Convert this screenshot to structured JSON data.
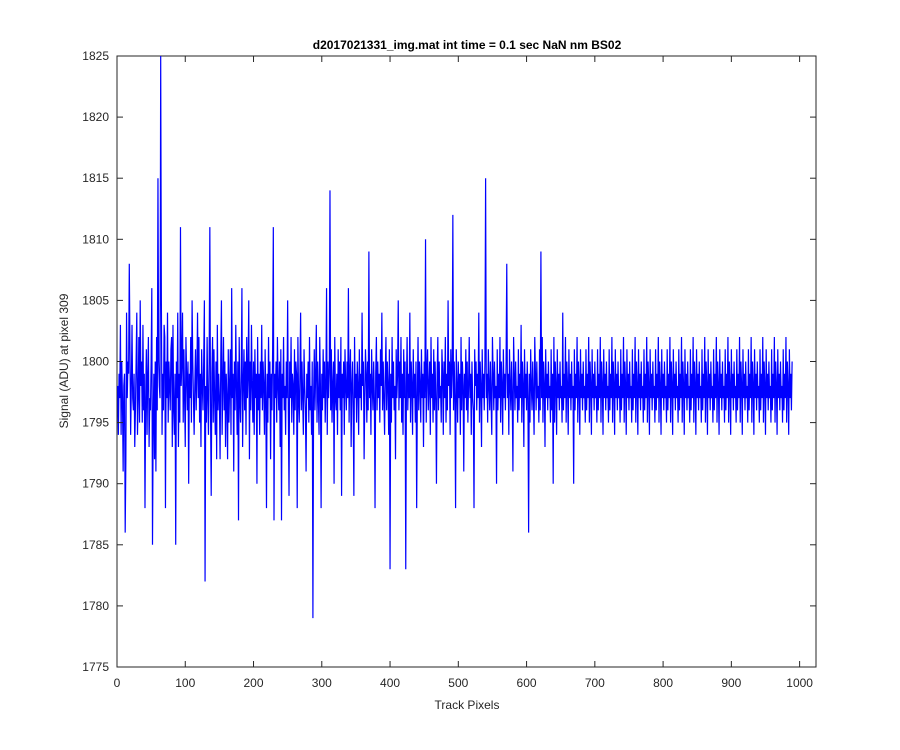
{
  "chart_data": {
    "type": "line",
    "title": "d2017021331_img.mat int time = 0.1 sec  NaN nm BS02",
    "xlabel": "Track Pixels",
    "ylabel": "Signal (ADU) at pixel 309",
    "xlim": [
      0,
      1024
    ],
    "ylim": [
      1775,
      1825
    ],
    "xticks": [
      "0",
      "100",
      "200",
      "300",
      "400",
      "500",
      "600",
      "700",
      "800",
      "900",
      "1000"
    ],
    "yticks": [
      "1775",
      "1780",
      "1785",
      "1790",
      "1795",
      "1800",
      "1805",
      "1810",
      "1815",
      "1820",
      "1825"
    ],
    "grid": false,
    "legend": "none",
    "series": [
      {
        "color": "#0000ff",
        "x_start": 1,
        "x_step": 1,
        "values": [
          1798,
          1794,
          1799,
          1797,
          1803,
          1794,
          1800,
          1797,
          1791,
          1798,
          1799,
          1786,
          1792,
          1804,
          1797,
          1800,
          1799,
          1808,
          1801,
          1794,
          1798,
          1803,
          1797,
          1796,
          1799,
          1793,
          1796,
          1800,
          1804,
          1794,
          1797,
          1802,
          1795,
          1805,
          1798,
          1800,
          1795,
          1803,
          1796,
          1799,
          1788,
          1797,
          1801,
          1794,
          1799,
          1802,
          1793,
          1797,
          1796,
          1800,
          1806,
          1785,
          1795,
          1799,
          1792,
          1800,
          1791,
          1802,
          1796,
          1815,
          1800,
          1798,
          1797,
          1825,
          1805,
          1794,
          1799,
          1796,
          1803,
          1802,
          1788,
          1800,
          1797,
          1804,
          1795,
          1800,
          1798,
          1796,
          1801,
          1802,
          1793,
          1803,
          1796,
          1794,
          1799,
          1785,
          1800,
          1797,
          1804,
          1793,
          1799,
          1795,
          1811,
          1798,
          1800,
          1804,
          1795,
          1801,
          1797,
          1793,
          1802,
          1799,
          1796,
          1800,
          1790,
          1799,
          1797,
          1802,
          1795,
          1805,
          1800,
          1797,
          1794,
          1798,
          1801,
          1796,
          1799,
          1804,
          1797,
          1802,
          1795,
          1799,
          1793,
          1801,
          1798,
          1796,
          1800,
          1805,
          1782,
          1798,
          1795,
          1802,
          1797,
          1794,
          1800,
          1811,
          1796,
          1789,
          1799,
          1802,
          1795,
          1801,
          1797,
          1794,
          1800,
          1792,
          1803,
          1796,
          1799,
          1797,
          1792,
          1800,
          1805,
          1794,
          1798,
          1802,
          1796,
          1800,
          1793,
          1799,
          1797,
          1792,
          1801,
          1795,
          1798,
          1801,
          1794,
          1806,
          1797,
          1799,
          1791,
          1800,
          1796,
          1803,
          1798,
          1794,
          1800,
          1787,
          1802,
          1797,
          1795,
          1799,
          1806,
          1793,
          1798,
          1801,
          1796,
          1800,
          1794,
          1802,
          1797,
          1799,
          1805,
          1792,
          1800,
          1796,
          1803,
          1798,
          1795,
          1800,
          1794,
          1801,
          1797,
          1799,
          1790,
          1802,
          1796,
          1799,
          1794,
          1800,
          1797,
          1803,
          1796,
          1800,
          1798,
          1794,
          1801,
          1797,
          1788,
          1799,
          1795,
          1802,
          1797,
          1800,
          1792,
          1799,
          1796,
          1801,
          1811,
          1787,
          1799,
          1797,
          1800,
          1795,
          1802,
          1798,
          1796,
          1800,
          1793,
          1801,
          1787,
          1799,
          1797,
          1802,
          1796,
          1798,
          1794,
          1800,
          1797,
          1805,
          1796,
          1789,
          1800,
          1797,
          1802,
          1795,
          1799,
          1798,
          1794,
          1801,
          1796,
          1800,
          1799,
          1788,
          1802,
          1797,
          1795,
          1799,
          1804,
          1796,
          1800,
          1797,
          1794,
          1801,
          1798,
          1796,
          1791,
          1799,
          1797,
          1800,
          1795,
          1802,
          1796,
          1798,
          1794,
          1800,
          1779,
          1797,
          1801,
          1796,
          1799,
          1803,
          1795,
          1800,
          1797,
          1794,
          1802,
          1798,
          1788,
          1799,
          1796,
          1801,
          1797,
          1800,
          1795,
          1798,
          1806,
          1794,
          1800,
          1797,
          1799,
          1814,
          1796,
          1801,
          1795,
          1798,
          1800,
          1790,
          1802,
          1797,
          1796,
          1799,
          1794,
          1801,
          1797,
          1800,
          1796,
          1802,
          1789,
          1799,
          1797,
          1800,
          1794,
          1801,
          1798,
          1796,
          1800,
          1797,
          1806,
          1795,
          1799,
          1801,
          1793,
          1798,
          1800,
          1796,
          1789,
          1802,
          1797,
          1799,
          1795,
          1800,
          1798,
          1794,
          1801,
          1797,
          1799,
          1796,
          1804,
          1798,
          1800,
          1792,
          1797,
          1801,
          1799,
          1795,
          1800,
          1796,
          1809,
          1797,
          1799,
          1794,
          1801,
          1798,
          1796,
          1800,
          1797,
          1788,
          1799,
          1802,
          1796,
          1800,
          1797,
          1799,
          1795,
          1801,
          1798,
          1804,
          1796,
          1800,
          1797,
          1794,
          1799,
          1802,
          1796,
          1800,
          1798,
          1794,
          1801,
          1783,
          1799,
          1795,
          1802,
          1797,
          1800,
          1796,
          1798,
          1792,
          1801,
          1797,
          1799,
          1805,
          1796,
          1800,
          1797,
          1802,
          1795,
          1799,
          1794,
          1801,
          1797,
          1800,
          1783,
          1798,
          1802,
          1796,
          1799,
          1797,
          1804,
          1795,
          1800,
          1798,
          1794,
          1801,
          1797,
          1799,
          1795,
          1800,
          1788,
          1797,
          1802,
          1796,
          1800,
          1798,
          1795,
          1801,
          1797,
          1799,
          1793,
          1800,
          1797,
          1810,
          1795,
          1799,
          1801,
          1796,
          1798,
          1800,
          1794,
          1802,
          1797,
          1799,
          1795,
          1801,
          1796,
          1800,
          1797,
          1790,
          1799,
          1802,
          1796,
          1800,
          1797,
          1798,
          1795,
          1801,
          1799,
          1794,
          1800,
          1797,
          1802,
          1795,
          1799,
          1796,
          1805,
          1798,
          1800,
          1794,
          1801,
          1797,
          1799,
          1812,
          1796,
          1800,
          1797,
          1788,
          1801,
          1798,
          1795,
          1800,
          1797,
          1799,
          1794,
          1802,
          1796,
          1800,
          1798,
          1791,
          1799,
          1797,
          1801,
          1796,
          1800,
          1795,
          1798,
          1802,
          1797,
          1799,
          1794,
          1800,
          1797,
          1796,
          1788,
          1801,
          1798,
          1800,
          1796,
          1799,
          1797,
          1804,
          1795,
          1800,
          1798,
          1793,
          1801,
          1797,
          1799,
          1796,
          1800,
          1815,
          1797,
          1799,
          1795,
          1801,
          1798,
          1796,
          1800,
          1797,
          1794,
          1802,
          1799,
          1796,
          1800,
          1797,
          1798,
          1790,
          1801,
          1796,
          1799,
          1797,
          1802,
          1795,
          1800,
          1798,
          1794,
          1801,
          1797,
          1799,
          1796,
          1800,
          1808,
          1797,
          1799,
          1794,
          1801,
          1798,
          1796,
          1800,
          1797,
          1791,
          1802,
          1799,
          1796,
          1800,
          1797,
          1798,
          1795,
          1801,
          1796,
          1799,
          1797,
          1803,
          1795,
          1800,
          1798,
          1793,
          1801,
          1797,
          1799,
          1796,
          1800,
          1797,
          1786,
          1799,
          1795,
          1801,
          1798,
          1796,
          1800,
          1797,
          1794,
          1802,
          1799,
          1796,
          1800,
          1797,
          1798,
          1795,
          1801,
          1796,
          1809,
          1797,
          1802,
          1795,
          1800,
          1798,
          1793,
          1801,
          1797,
          1799,
          1796,
          1800,
          1797,
          1798,
          1795,
          1801,
          1796,
          1799,
          1790,
          1802,
          1795,
          1800,
          1798,
          1794,
          1801,
          1797,
          1799,
          1796,
          1800,
          1797,
          1798,
          1795,
          1804,
          1796,
          1799,
          1797,
          1802,
          1795,
          1800,
          1798,
          1794,
          1801,
          1797,
          1799,
          1796,
          1800,
          1797,
          1798,
          1790,
          1801,
          1796,
          1799,
          1797,
          1802,
          1795,
          1800,
          1798,
          1794,
          1801,
          1797,
          1799,
          1796,
          1800,
          1797,
          1798,
          1795,
          1801,
          1796,
          1799,
          1797,
          1802,
          1795,
          1800,
          1798,
          1794,
          1801,
          1797,
          1799,
          1796,
          1800,
          1797,
          1798,
          1795,
          1801,
          1796,
          1799,
          1797,
          1802,
          1795,
          1800,
          1798,
          1794,
          1801,
          1797,
          1799,
          1796,
          1800,
          1797,
          1798,
          1795,
          1801,
          1796,
          1799,
          1797,
          1802,
          1795,
          1800,
          1798,
          1794,
          1801,
          1797,
          1799,
          1796,
          1800,
          1797,
          1798,
          1795,
          1801,
          1796,
          1799,
          1797,
          1802,
          1795,
          1800,
          1798,
          1794,
          1801,
          1797,
          1799,
          1796,
          1800,
          1797,
          1798,
          1795,
          1801,
          1796,
          1799,
          1797,
          1802,
          1795,
          1800,
          1798,
          1794,
          1801,
          1797,
          1799,
          1796,
          1800,
          1797,
          1798,
          1795,
          1801,
          1796,
          1799,
          1797,
          1802,
          1795,
          1800,
          1798,
          1794,
          1801,
          1797,
          1799,
          1796,
          1800,
          1797,
          1798,
          1795,
          1801,
          1796,
          1799,
          1797,
          1802,
          1795,
          1800,
          1798,
          1794,
          1801,
          1797,
          1799,
          1796,
          1800,
          1797,
          1798,
          1795,
          1801,
          1796,
          1799,
          1797,
          1802,
          1795,
          1800,
          1798,
          1794,
          1801,
          1797,
          1799,
          1796,
          1800,
          1797,
          1798,
          1795,
          1801,
          1796,
          1799,
          1797,
          1802,
          1795,
          1800,
          1798,
          1794,
          1801,
          1797,
          1799,
          1796,
          1800,
          1797,
          1798,
          1795,
          1801,
          1796,
          1799,
          1797,
          1802,
          1795,
          1800,
          1798,
          1794,
          1801,
          1797,
          1799,
          1796,
          1800,
          1797,
          1798,
          1795,
          1801,
          1796,
          1799,
          1797,
          1802,
          1795,
          1800,
          1798,
          1794,
          1801,
          1797,
          1799,
          1796,
          1800,
          1797,
          1798,
          1795,
          1801,
          1796,
          1799,
          1797,
          1802,
          1795,
          1800,
          1798,
          1794,
          1801,
          1797,
          1799,
          1796,
          1800,
          1797,
          1798,
          1795,
          1801,
          1796,
          1799,
          1797,
          1802,
          1795,
          1800,
          1798,
          1794,
          1801,
          1797,
          1799,
          1796,
          1800,
          1797,
          1798,
          1795,
          1801,
          1796,
          1799,
          1797,
          1802,
          1795,
          1800,
          1798,
          1794,
          1801,
          1797,
          1799,
          1796,
          1800,
          1797,
          1798,
          1795,
          1801,
          1796,
          1799,
          1797,
          1802,
          1795,
          1800,
          1798,
          1794,
          1801,
          1797,
          1799,
          1796,
          1800,
          1797,
          1798,
          1795,
          1801,
          1796,
          1799,
          1797,
          1802,
          1795,
          1800,
          1798,
          1794,
          1801,
          1797,
          1799,
          1796,
          1800,
          1797,
          1798,
          1795,
          1801,
          1796,
          1799,
          1797,
          1802,
          1795,
          1800,
          1798,
          1794,
          1801,
          1797,
          1799,
          1796,
          1800,
          1797,
          1798,
          1795,
          1801,
          1796,
          1799,
          1797,
          1802,
          1795,
          1800,
          1798,
          1794,
          1801,
          1797,
          1799,
          1796,
          1800
        ]
      }
    ]
  }
}
